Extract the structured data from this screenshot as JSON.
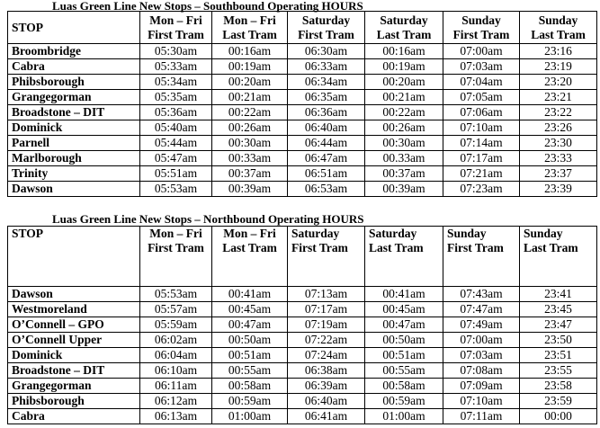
{
  "southbound": {
    "title": "Luas Green Line New Stops – Southbound  Operating HOURS",
    "headers": [
      [
        "STOP",
        ""
      ],
      [
        "Mon – Fri",
        "First Tram"
      ],
      [
        "Mon – Fri",
        "Last Tram"
      ],
      [
        "Saturday",
        "First Tram"
      ],
      [
        "Saturday",
        "Last Tram"
      ],
      [
        "Sunday",
        "First Tram"
      ],
      [
        "Sunday",
        "Last Tram"
      ]
    ],
    "rows": [
      [
        "Broombridge",
        "05:30am",
        "00:16am",
        "06:30am",
        "00:16am",
        "07:00am",
        "23:16"
      ],
      [
        "Cabra",
        "05:33am",
        "00:19am",
        "06:33am",
        "00:19am",
        "07:03am",
        "23:19"
      ],
      [
        "Phibsborough",
        "05:34am",
        "00:20am",
        "06:34am",
        "00:20am",
        "07:04am",
        "23:20"
      ],
      [
        "Grangegorman",
        "05:35am",
        "00:21am",
        "06:35am",
        "00:21am",
        "07:05am",
        "23:21"
      ],
      [
        "Broadstone – DIT",
        "05:36am",
        "00:22am",
        "06:36am",
        "00:22am",
        "07:06am",
        "23:22"
      ],
      [
        "Dominick",
        "05:40am",
        "00:26am",
        "06:40am",
        "00:26am",
        "07:10am",
        "23:26"
      ],
      [
        "Parnell",
        "05:44am",
        "00:30am",
        "06:44am",
        "00:30am",
        "07:14am",
        "23:30"
      ],
      [
        "Marlborough",
        "05:47am",
        "00:33am",
        "06:47am",
        "00.33am",
        "07:17am",
        "23:33"
      ],
      [
        "Trinity",
        "05:51am",
        "00:37am",
        "06:51am",
        "00:37am",
        "07:21am",
        "23:37"
      ],
      [
        "Dawson",
        "05:53am",
        "00:39am",
        "06:53am",
        "00:39am",
        "07:23am",
        "23:39"
      ]
    ]
  },
  "northbound": {
    "title": "Luas Green Line New Stops – Northbound  Operating HOURS",
    "headers": [
      [
        "STOP",
        ""
      ],
      [
        "Mon – Fri",
        "First Tram"
      ],
      [
        "Mon – Fri",
        "Last Tram"
      ],
      [
        "Saturday",
        "First Tram"
      ],
      [
        "Saturday",
        "Last Tram"
      ],
      [
        "Sunday",
        "First Tram"
      ],
      [
        "Sunday",
        "Last Tram"
      ]
    ],
    "rows": [
      [
        "Dawson",
        "05:53am",
        "00:41am",
        "07:13am",
        "00:41am",
        "07:43am",
        "23:41"
      ],
      [
        "Westmoreland",
        "05:57am",
        "00:45am",
        "07:17am",
        "00:45am",
        "07:47am",
        "23:45"
      ],
      [
        "O’Connell – GPO",
        "05:59am",
        "00:47am",
        "07:19am",
        "00:47am",
        "07:49am",
        "23:47"
      ],
      [
        "O’Connell Upper",
        "06:02am",
        "00:50am",
        "07:22am",
        "00:50am",
        "07:00am",
        "23:50"
      ],
      [
        "Dominick",
        "06:04am",
        "00:51am",
        "07:24am",
        "00:51am",
        "07:03am",
        "23:51"
      ],
      [
        "Broadstone – DIT",
        "06:10am",
        "00:55am",
        "06:38am",
        "00:55am",
        "07:08am",
        "23:55"
      ],
      [
        "Grangegorman",
        "06:11am",
        "00:58am",
        "06:39am",
        "00:58am",
        "07:09am",
        "23:58"
      ],
      [
        "Phibsborough",
        "06:12am",
        "00:59am",
        "06:40am",
        "00:59am",
        "07:10am",
        "23:59"
      ],
      [
        "Cabra",
        "06:13am",
        "01:00am",
        "06:41am",
        "01:00am",
        "07:11am",
        "00:00"
      ]
    ]
  }
}
